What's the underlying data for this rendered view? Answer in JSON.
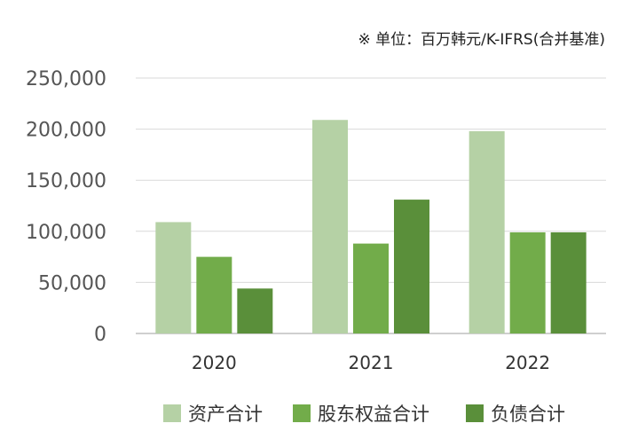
{
  "chart_data": {
    "type": "bar",
    "title": "",
    "note": "※ 单位：百万韩元/K-IFRS(合并基准)",
    "xlabel": "",
    "ylabel": "",
    "categories": [
      "2020",
      "2021",
      "2022"
    ],
    "ylim": [
      0,
      250000
    ],
    "yticks": [
      0,
      50000,
      100000,
      150000,
      200000,
      250000
    ],
    "ytick_labels": [
      "0",
      "50,000",
      "100,000",
      "150,000",
      "200,000",
      "250,000"
    ],
    "grid": true,
    "legend_position": "bottom",
    "series": [
      {
        "name": "资产合计",
        "color": "#b5d1a5",
        "values": [
          109000,
          209000,
          198000
        ]
      },
      {
        "name": "股东权益合计",
        "color": "#72ac4a",
        "values": [
          75000,
          88000,
          99000
        ]
      },
      {
        "name": "负债合计",
        "color": "#5a8f3a",
        "values": [
          44000,
          131000,
          99000
        ]
      }
    ]
  }
}
